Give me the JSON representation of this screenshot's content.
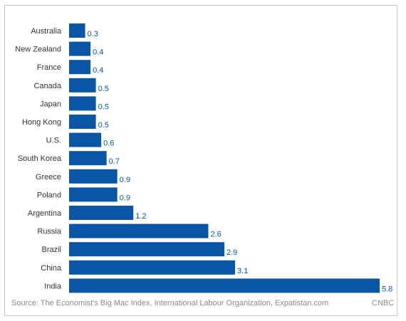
{
  "chart_data": {
    "type": "bar",
    "orientation": "horizontal",
    "categories": [
      "Australia",
      "New Zealand",
      "France",
      "Canada",
      "Japan",
      "Hong Kong",
      "U.S.",
      "South Korea",
      "Greece",
      "Poland",
      "Argentina",
      "Russia",
      "Brazil",
      "China",
      "India"
    ],
    "values": [
      0.3,
      0.4,
      0.4,
      0.5,
      0.5,
      0.5,
      0.6,
      0.7,
      0.9,
      0.9,
      1.2,
      2.6,
      2.9,
      3.1,
      5.8
    ],
    "value_labels": [
      "0.3",
      "0.4",
      "0.4",
      "0.5",
      "0.5",
      "0.5",
      "0.6",
      "0.7",
      "0.9",
      "0.9",
      "1.2",
      "2.6",
      "2.9",
      "3.1",
      "5.8"
    ],
    "xlim": [
      0,
      5.8
    ],
    "grid": false,
    "bar_color": "#0b55a6",
    "label_color": "#0b55a6",
    "category_color": "#333333"
  },
  "footer": {
    "source": "Source: The Economist's Big Mac Index, International Labour Organization, Expatistan.com",
    "brand": "CNBC"
  }
}
